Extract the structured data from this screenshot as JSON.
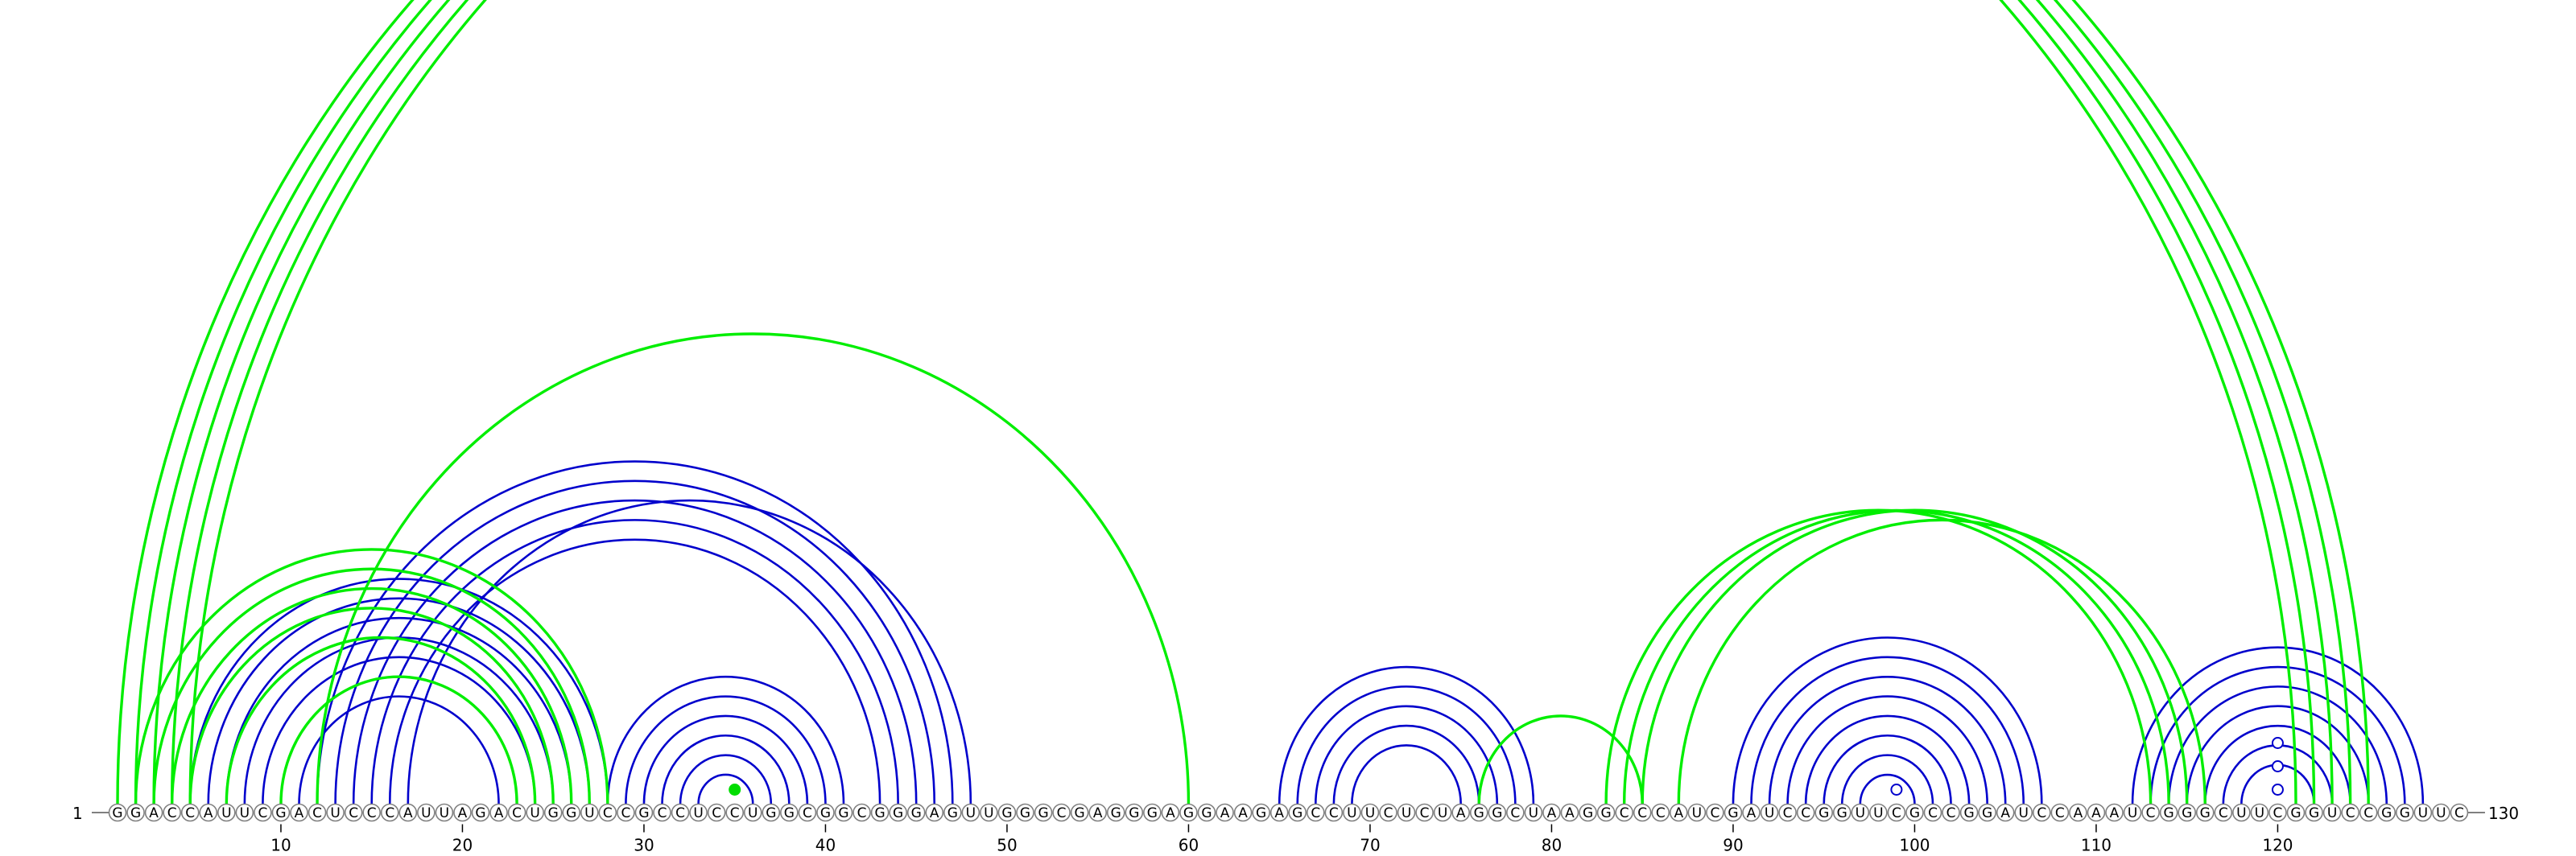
{
  "sequence": "GGACCAUUCGACUCCCAUUAGACUGGUCCGCCUCCUGGCGGCGGGAGUUGGGCGAGGGAGGAAGAGCCUUCUCUAGGCUAAGGCCCAUCGAUCCGGUUCGCCGGAUCCAAAUCGGGCUUCGGUCCGGUUC",
  "start_label": "1",
  "end_label": "130",
  "ticks": [
    10,
    20,
    30,
    40,
    50,
    60,
    70,
    80,
    90,
    100,
    110,
    120
  ],
  "colors": {
    "blue_arc": "#0000cc",
    "green_arc": "#00ee00",
    "marker_open": "#ffffff",
    "marker_fill": "#00dd00"
  },
  "arcs_blue": [
    [
      5,
      28
    ],
    [
      6,
      27
    ],
    [
      7,
      26
    ],
    [
      8,
      25
    ],
    [
      9,
      24
    ],
    [
      10,
      23
    ],
    [
      11,
      22
    ],
    [
      12,
      47
    ],
    [
      13,
      46
    ],
    [
      14,
      45
    ],
    [
      15,
      44
    ],
    [
      16,
      43
    ],
    [
      17,
      48
    ],
    [
      28,
      41
    ],
    [
      29,
      40
    ],
    [
      30,
      39
    ],
    [
      31,
      38
    ],
    [
      32,
      37
    ],
    [
      33,
      36
    ],
    [
      65,
      79
    ],
    [
      66,
      78
    ],
    [
      67,
      77
    ],
    [
      68,
      76
    ],
    [
      69,
      75
    ],
    [
      90,
      107
    ],
    [
      91,
      106
    ],
    [
      92,
      105
    ],
    [
      93,
      104
    ],
    [
      94,
      103
    ],
    [
      95,
      102
    ],
    [
      96,
      101
    ],
    [
      97,
      100
    ],
    [
      112,
      128
    ],
    [
      113,
      127
    ],
    [
      114,
      126
    ],
    [
      115,
      125
    ],
    [
      116,
      124
    ],
    [
      117,
      123
    ],
    [
      118,
      122
    ]
  ],
  "arcs_green": [
    [
      1,
      121
    ],
    [
      2,
      122
    ],
    [
      3,
      123
    ],
    [
      4,
      124
    ],
    [
      5,
      125
    ],
    [
      2,
      28
    ],
    [
      3,
      27
    ],
    [
      4,
      26
    ],
    [
      5,
      25
    ],
    [
      7,
      24
    ],
    [
      12,
      60
    ],
    [
      76,
      85
    ],
    [
      83,
      113
    ],
    [
      84,
      114
    ],
    [
      85,
      115
    ],
    [
      87,
      116
    ],
    [
      10,
      23
    ]
  ],
  "markers": [
    {
      "pos": 35,
      "type": "fill"
    },
    {
      "pos": 99,
      "type": "open"
    },
    {
      "pos": 120,
      "type": "open"
    },
    {
      "pos": 120,
      "type": "open"
    },
    {
      "pos": 120,
      "type": "open"
    }
  ]
}
